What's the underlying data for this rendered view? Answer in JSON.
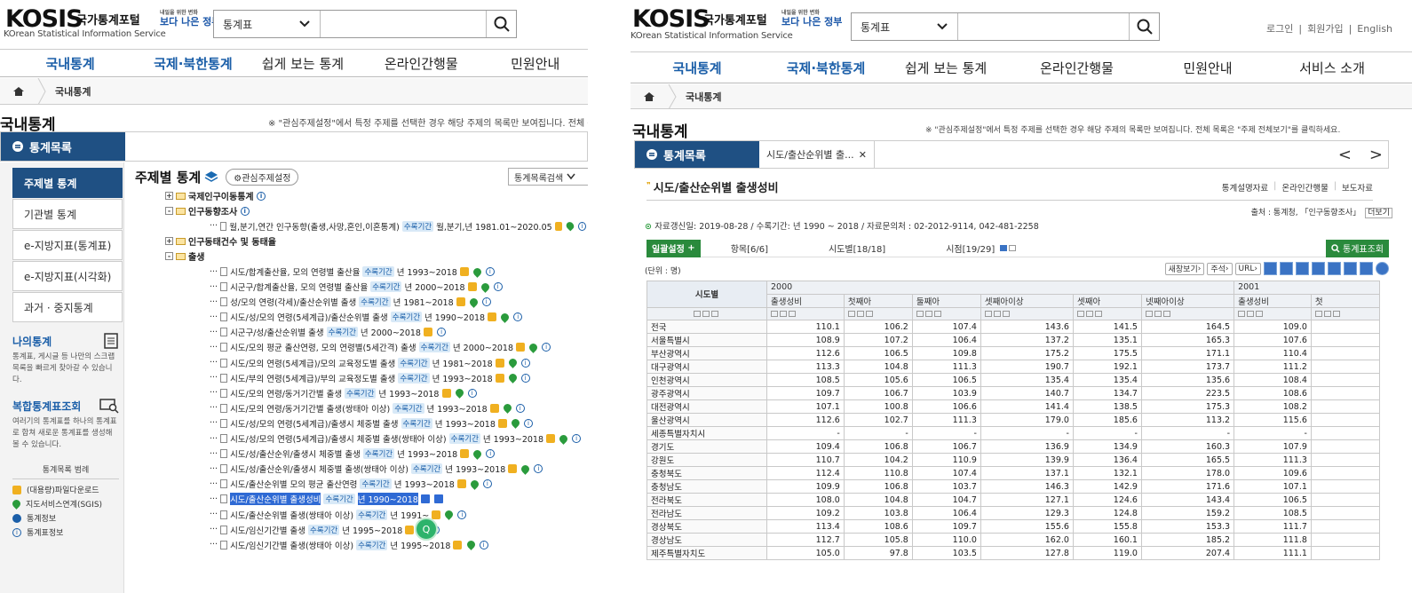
{
  "header": {
    "logo_kosis": "KOSIS",
    "logo_korean": "국가통계포털",
    "logo_english": "KOrean Statistical Information Service",
    "gov_line1": "내일을 위한 변화",
    "gov_line2": "보다 나은 정부",
    "search_category": "통계표",
    "search_value": "",
    "top_links": [
      "로그인",
      "회원가입",
      "English"
    ]
  },
  "gnb_left": [
    "국내통계",
    "국제·북한통계",
    "쉽게 보는 통계",
    "온라인간행물",
    "민원안내"
  ],
  "gnb_right": [
    "국내통계",
    "국제·북한통계",
    "쉽게 보는 통계",
    "온라인간행물",
    "민원안내",
    "서비스 소개"
  ],
  "breadcrumb": "국내통계",
  "page": {
    "title": "국내통계",
    "note_left": "※ \"관심주제설정\"에서 특정 주제를 선택한 경우 해당 주제의 목록만 보여집니다. 전체 목",
    "note_right": "※ \"관심주제설정\"에서 특정 주제를 선택한 경우 해당 주제의 목록만 보여집니다. 전체 목록은 \"주제 전체보기\"를 클릭하세요."
  },
  "left": {
    "tab_label": "통계목록",
    "sidebar": [
      "주제별 통계",
      "기관별 통계",
      "e-지방지표(통계표)",
      "e-지방지표(시각화)",
      "과거 · 중지통계"
    ],
    "my_stats_title": "나의통계",
    "my_stats_desc": "통계표, 게시글 등 나만의 스크랩 목록을 빠르게 찾아갈 수 있습니다.",
    "combo_title": "복합통계표조회",
    "combo_desc": "여러기의 통계표를 하나의 통계표로 합쳐 새로운 통계표를 생성해 볼 수 있습니다.",
    "legend_title": "통계목록 범례",
    "legend": [
      "(대용량)파일다운로드",
      "지도서비스연계(SGIS)",
      "통계정보",
      "통계표정보"
    ],
    "tree_title": "주제별 통계",
    "interest_btn": "⚙관심주제설정",
    "tree_select": "통계목록검색",
    "tree_search_btn": "검색",
    "tree": [
      {
        "type": "folder",
        "pm": "+",
        "text": "국제인구이동통계",
        "icons": "i"
      },
      {
        "type": "folder",
        "pm": "-",
        "text": "인구동향조사",
        "icons": "i"
      },
      {
        "type": "item",
        "text": "월,분기,연간 인구동향(출생,사망,혼인,이혼통계)",
        "tag": "수록기간",
        "period": "월,분기,년 1981.01~2020.05",
        "icons": "dmi"
      },
      {
        "type": "folder",
        "pm": "+",
        "text": "인구동태건수 및 동태율",
        "icons": ""
      },
      {
        "type": "folder",
        "pm": "-",
        "text": "출생",
        "icons": ""
      },
      {
        "type": "item",
        "text": "시도/합계출산율, 모의 연령별 출산율",
        "tag": "수록기간",
        "period": "년 1993~2018",
        "icons": "dmi"
      },
      {
        "type": "item",
        "text": "시군구/합계출산율, 모의 연령별 출산율",
        "tag": "수록기간",
        "period": "년 2000~2018",
        "icons": "dmi"
      },
      {
        "type": "item",
        "text": "성/모의 연령(각세)/출산순위별 출생",
        "tag": "수록기간",
        "period": "년 1981~2018",
        "icons": "dmi"
      },
      {
        "type": "item",
        "text": "시도/성/모의 연령(5세계급)/출산순위별 출생",
        "tag": "수록기간",
        "period": "년 1990~2018",
        "icons": "dmi"
      },
      {
        "type": "item",
        "text": "시군구/성/출산순위별 출생",
        "tag": "수록기간",
        "period": "년 2000~2018",
        "icons": "di"
      },
      {
        "type": "item",
        "text": "시도/모의 평균 출산연령, 모의 연령별(5세간격) 출생",
        "tag": "수록기간",
        "period": "년 2000~2018",
        "icons": "dmi"
      },
      {
        "type": "item",
        "text": "시도/모의 연령(5세계급)/모의 교육정도별 출생",
        "tag": "수록기간",
        "period": "년 1981~2018",
        "icons": "dmi"
      },
      {
        "type": "item",
        "text": "시도/부의 연령(5세계급)/부의 교육정도별 출생",
        "tag": "수록기간",
        "period": "년 1993~2018",
        "icons": "dmi"
      },
      {
        "type": "item",
        "text": "시도/모의 연령/동거기간별 출생",
        "tag": "수록기간",
        "period": "년 1993~2018",
        "icons": "dmi"
      },
      {
        "type": "item",
        "text": "시도/모의 연령/동거기간별 출생(쌍태아 이상)",
        "tag": "수록기간",
        "period": "년 1993~2018",
        "icons": "dmi"
      },
      {
        "type": "item",
        "text": "시도/성/모의 연령(5세계급)/출생시 체중별 출생",
        "tag": "수록기간",
        "period": "년 1993~2018",
        "icons": "dmi"
      },
      {
        "type": "item",
        "text": "시도/성/모의 연령(5세계급)/출생시 체중별 출생(쌍태아 이상)",
        "tag": "수록기간",
        "period": "년 1993~2018",
        "icons": "dmi"
      },
      {
        "type": "item",
        "text": "시도/성/출산순위/출생시 체중별 출생",
        "tag": "수록기간",
        "period": "년 1993~2018",
        "icons": "dmi"
      },
      {
        "type": "item",
        "text": "시도/성/출산순위/출생시 체중별 출생(쌍태아 이상)",
        "tag": "수록기간",
        "period": "년 1993~2018",
        "icons": "dmi"
      },
      {
        "type": "item",
        "text": "시도/출산순위별 모의 평균 출산연령",
        "tag": "수록기간",
        "period": "년 1993~2018",
        "icons": "dmi"
      },
      {
        "type": "item",
        "sel": true,
        "text": "시도/출산순위별 출생성비",
        "tag": "수록기간",
        "period": "년 1990~2018",
        "icons": "bb"
      },
      {
        "type": "item",
        "text": "시도/출산순위별 출생(쌍태아 이상)",
        "tag": "수록기간",
        "period": "년 1991~",
        "icons": "dmi"
      },
      {
        "type": "item",
        "text": "시도/임신기간별 출생",
        "tag": "수록기간",
        "period": "년 1995~2018",
        "icons": "dmi"
      },
      {
        "type": "item",
        "text": "시도/임신기간별 출생(쌍태아 이상)",
        "tag": "수록기간",
        "period": "년 1995~2018",
        "icons": "dmi"
      }
    ]
  },
  "right": {
    "tab_label": "통계목록",
    "open_tab": "시도/출산순위별 출...",
    "nav_prev": "<",
    "nav_next": ">",
    "table_title": "시도/출산순위별 출생성비",
    "links": [
      "통계설명자료",
      "온라인간행물",
      "보도자료"
    ],
    "source": "출처 : 통계청, 「인구동향조사」",
    "source_btn": "더보기",
    "meta": "자료갱신일: 2019-08-28 / 수록기간: 년 1990 ~ 2018 / 자료문의처 : 02-2012-9114, 042-481-2258",
    "controls": {
      "settings": "일괄설정",
      "items": "항목[6/6]",
      "regions": "시도별[18/18]",
      "times": "시점[19/29]",
      "lookup": "통계표조회"
    },
    "unit": "(단위 : 명)",
    "tool_btns": [
      "새창보기",
      "주석",
      "URL"
    ],
    "row_header": "시도별",
    "years": [
      "2000",
      "2001"
    ],
    "columns": [
      "출생성비",
      "첫째아",
      "둘째아",
      "셋째아이상",
      "셋째아",
      "넷째아이상",
      "출생성비",
      "첫"
    ],
    "rows": [
      {
        "name": "전국",
        "v": [
          "110.1",
          "106.2",
          "107.4",
          "143.6",
          "141.5",
          "164.5",
          "109.0"
        ]
      },
      {
        "name": "서울특별시",
        "v": [
          "108.9",
          "107.2",
          "106.4",
          "137.2",
          "135.1",
          "165.3",
          "107.6"
        ]
      },
      {
        "name": "부산광역시",
        "v": [
          "112.6",
          "106.5",
          "109.8",
          "175.2",
          "175.5",
          "171.1",
          "110.4"
        ]
      },
      {
        "name": "대구광역시",
        "v": [
          "113.3",
          "104.8",
          "111.3",
          "190.7",
          "192.1",
          "173.7",
          "111.2"
        ]
      },
      {
        "name": "인천광역시",
        "v": [
          "108.5",
          "105.6",
          "106.5",
          "135.4",
          "135.4",
          "135.6",
          "108.4"
        ]
      },
      {
        "name": "광주광역시",
        "v": [
          "109.7",
          "106.7",
          "103.9",
          "140.7",
          "134.7",
          "223.5",
          "108.6"
        ]
      },
      {
        "name": "대전광역시",
        "v": [
          "107.1",
          "100.8",
          "106.6",
          "141.4",
          "138.5",
          "175.3",
          "108.2"
        ]
      },
      {
        "name": "울산광역시",
        "v": [
          "112.6",
          "102.7",
          "111.3",
          "179.0",
          "185.6",
          "113.2",
          "115.6"
        ]
      },
      {
        "name": "세종특별자치시",
        "v": [
          "-",
          "-",
          "-",
          "-",
          "-",
          "-",
          "-"
        ]
      },
      {
        "name": "경기도",
        "v": [
          "109.4",
          "106.8",
          "106.7",
          "136.9",
          "134.9",
          "160.3",
          "107.9"
        ]
      },
      {
        "name": "강원도",
        "v": [
          "110.7",
          "104.2",
          "110.9",
          "139.9",
          "136.4",
          "165.5",
          "111.3"
        ]
      },
      {
        "name": "충청북도",
        "v": [
          "112.4",
          "110.8",
          "107.4",
          "137.1",
          "132.1",
          "178.0",
          "109.6"
        ]
      },
      {
        "name": "충청남도",
        "v": [
          "109.9",
          "106.8",
          "103.7",
          "146.3",
          "142.9",
          "171.6",
          "107.1"
        ]
      },
      {
        "name": "전라북도",
        "v": [
          "108.0",
          "104.8",
          "104.7",
          "127.1",
          "124.6",
          "143.4",
          "106.5"
        ]
      },
      {
        "name": "전라남도",
        "v": [
          "109.2",
          "103.8",
          "106.4",
          "129.3",
          "124.8",
          "159.2",
          "108.5"
        ]
      },
      {
        "name": "경상북도",
        "v": [
          "113.4",
          "108.6",
          "109.7",
          "155.6",
          "155.8",
          "153.3",
          "111.7"
        ]
      },
      {
        "name": "경상남도",
        "v": [
          "112.7",
          "105.8",
          "110.0",
          "162.0",
          "160.1",
          "185.2",
          "111.8"
        ]
      },
      {
        "name": "제주특별자치도",
        "v": [
          "105.0",
          "97.8",
          "103.5",
          "127.8",
          "119.0",
          "207.4",
          "111.1"
        ]
      }
    ]
  }
}
